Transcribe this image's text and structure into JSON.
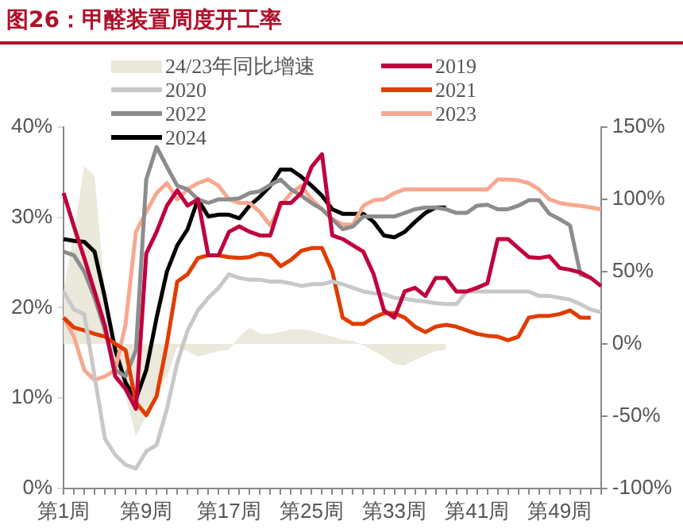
{
  "chart_data": {
    "type": "line",
    "title": "图26：甲醛装置周度开工率",
    "categories": [
      "第1周",
      null,
      null,
      null,
      null,
      null,
      null,
      null,
      "第9周",
      null,
      null,
      null,
      null,
      null,
      null,
      null,
      "第17周",
      null,
      null,
      null,
      null,
      null,
      null,
      null,
      "第25周",
      null,
      null,
      null,
      null,
      null,
      null,
      null,
      "第33周",
      null,
      null,
      null,
      null,
      null,
      null,
      null,
      "第41周",
      null,
      null,
      null,
      null,
      null,
      null,
      null,
      "第49周",
      null,
      null,
      null,
      null
    ],
    "series": [
      {
        "name": "24/23年同比增速",
        "type": "area",
        "axis": "y2",
        "color": "#ebe8dc",
        "values": [
          36,
          77,
          123,
          116,
          36,
          -23,
          -36,
          -64,
          -50,
          -32,
          -23,
          -2,
          -5,
          -9,
          -7,
          -5,
          -4,
          5,
          11,
          7,
          7,
          8,
          10,
          10,
          9,
          7,
          5,
          3,
          2,
          -1,
          -5,
          -9,
          -14,
          -15,
          -11,
          -8,
          -5,
          -4,
          null,
          null,
          null,
          null,
          null,
          null,
          null,
          null,
          null,
          null,
          null,
          null,
          null,
          null,
          null
        ]
      },
      {
        "name": "2019",
        "color": "#c0003c",
        "values": [
          32.7,
          29,
          25.5,
          21.8,
          18,
          12.4,
          11,
          8.8,
          26,
          28.4,
          31.3,
          33,
          31.3,
          32,
          25.8,
          25.8,
          28.4,
          29,
          28.4,
          28,
          28,
          31.6,
          31.6,
          32.7,
          35.6,
          37,
          28,
          27.6,
          26.9,
          26.2,
          23.7,
          19.7,
          18.9,
          21.8,
          22.2,
          21.3,
          23.3,
          23.3,
          21.8,
          21.8,
          22.2,
          22.7,
          27.6,
          27.6,
          26.6,
          25.6,
          25.5,
          25.7,
          24.4,
          24.2,
          23.9,
          23.3,
          22.4
        ]
      },
      {
        "name": "2020",
        "color": "#c8c8c8",
        "values": [
          21.8,
          19.8,
          19.3,
          12.4,
          5.5,
          3.7,
          2.6,
          2.2,
          4.1,
          4.8,
          8.8,
          13.9,
          17.5,
          19.7,
          21.1,
          22.2,
          23.7,
          23.3,
          23.1,
          23.1,
          22.9,
          22.9,
          22.7,
          22.4,
          22.6,
          22.6,
          22.9,
          22.6,
          22.2,
          21.8,
          21.6,
          21.5,
          21.1,
          21,
          20.8,
          20.7,
          20.5,
          20.4,
          20.4,
          21.8,
          21.8,
          21.8,
          21.8,
          21.8,
          21.8,
          21.8,
          21.3,
          21.3,
          21.1,
          20.9,
          20.4,
          19.8,
          19.5
        ]
      },
      {
        "name": "2021",
        "color": "#e03c00",
        "values": [
          18.9,
          17.8,
          17.5,
          17.1,
          16.8,
          16,
          15.3,
          9.5,
          8.1,
          10.2,
          16,
          22.9,
          23.7,
          25.5,
          25.8,
          25.8,
          25.6,
          25.5,
          25.6,
          26,
          25.8,
          24.6,
          25.3,
          26.3,
          26.6,
          26.6,
          24,
          18.9,
          18.2,
          18.2,
          18.9,
          19.4,
          19.4,
          18.9,
          17.9,
          17.3,
          17.9,
          18.1,
          17.9,
          17.5,
          17.1,
          16.9,
          16.8,
          16.4,
          16.8,
          18.9,
          19.1,
          19.1,
          19.3,
          19.7,
          18.9,
          18.9,
          null
        ]
      },
      {
        "name": "2022",
        "color": "#8c8c8c",
        "values": [
          26.2,
          25.8,
          24,
          21.1,
          17.5,
          13.1,
          12.4,
          15.3,
          34.2,
          37.8,
          35.6,
          33.5,
          33.1,
          32,
          31.6,
          32,
          32,
          32.1,
          32.7,
          32.9,
          33.6,
          34.2,
          33.1,
          32.4,
          31.6,
          30.9,
          29.8,
          28.7,
          29,
          30.1,
          30.1,
          30.1,
          30.1,
          30.5,
          30.9,
          31.1,
          31.1,
          30.9,
          30.5,
          30.5,
          31.3,
          31.4,
          30.9,
          30.9,
          31.3,
          31.9,
          31.9,
          30.4,
          29.8,
          29.1,
          23.7,
          23.3,
          null
        ]
      },
      {
        "name": "2023",
        "color": "#f8a890",
        "values": [
          18.9,
          16.8,
          13.1,
          12,
          12.4,
          13.1,
          18.2,
          28.4,
          30.6,
          32.7,
          33.8,
          32,
          33.1,
          33.8,
          34.2,
          33.5,
          32,
          31.6,
          31.6,
          30.6,
          29.1,
          31.3,
          32.7,
          33.5,
          32,
          30.9,
          29.8,
          29.2,
          29.2,
          31.3,
          31.9,
          32,
          32.7,
          33.1,
          33.1,
          33.1,
          33.1,
          33.1,
          33.1,
          33.1,
          33.1,
          33.1,
          34.2,
          34.2,
          34.1,
          33.8,
          33.1,
          32,
          31.6,
          31.4,
          31.3,
          31.1,
          30.9
        ]
      },
      {
        "name": "2024",
        "color": "#000000",
        "values": [
          27.6,
          27.4,
          27.3,
          26.2,
          21.1,
          15.3,
          11.7,
          9.9,
          13.1,
          18.9,
          24,
          26.9,
          28.7,
          32,
          30.1,
          30.3,
          30.3,
          29.9,
          31.3,
          32.3,
          33.5,
          35.3,
          35.3,
          34.5,
          33.5,
          32.4,
          30.9,
          30.4,
          30.4,
          30.4,
          29.5,
          28,
          27.8,
          28.4,
          29.5,
          30.5,
          31.1,
          31.1,
          null,
          null,
          null,
          null,
          null,
          null,
          null,
          null,
          null,
          null,
          null,
          null,
          null,
          null,
          null
        ]
      }
    ],
    "ylim": [
      0,
      40
    ],
    "yticks": [
      {
        "value": 0,
        "label": "0%"
      },
      {
        "value": 10,
        "label": "10%"
      },
      {
        "value": 20,
        "label": "20%"
      },
      {
        "value": 30,
        "label": "30%"
      },
      {
        "value": 40,
        "label": "40%"
      }
    ],
    "y2lim": [
      -100,
      150
    ],
    "y2ticks": [
      {
        "value": -100,
        "label": "-100%"
      },
      {
        "value": -50,
        "label": "-50%"
      },
      {
        "value": 0,
        "label": "0%"
      },
      {
        "value": 50,
        "label": "50%"
      },
      {
        "value": 100,
        "label": "100%"
      },
      {
        "value": 150,
        "label": "150%"
      }
    ],
    "grid": false,
    "legend": "top",
    "marker": "none",
    "line_style": "solid"
  }
}
